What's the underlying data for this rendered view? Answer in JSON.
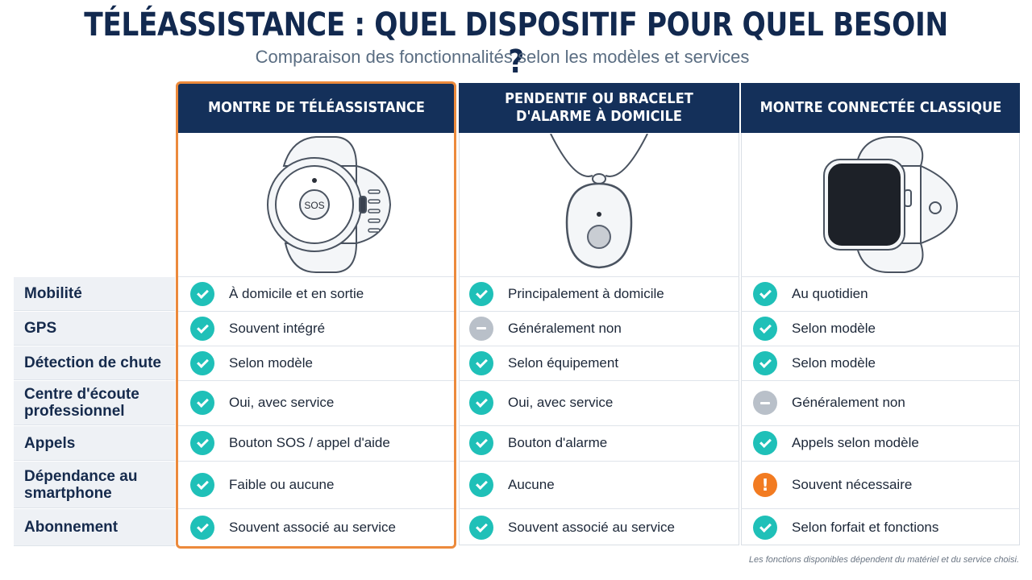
{
  "title": "TÉLÉASSISTANCE : QUEL DISPOSITIF POUR QUEL BESOIN ?",
  "subtitle": "Comparaison des fonctionnalités selon les modèles et services",
  "columns": [
    {
      "header": "MONTRE DE TÉLÉASSISTANCE",
      "image_icon": "sos-watch-icon",
      "highlighted": true
    },
    {
      "header": "PENDENTIF OU BRACELET D'ALARME À DOMICILE",
      "image_icon": "alarm-pendant-icon",
      "highlighted": false
    },
    {
      "header": "MONTRE CONNECTÉE CLASSIQUE",
      "image_icon": "smartwatch-icon",
      "highlighted": false
    }
  ],
  "rows": [
    {
      "label": "Mobilité",
      "cells": [
        {
          "icon": "check",
          "text": "À domicile et en sortie"
        },
        {
          "icon": "check",
          "text": "Principalement à domicile"
        },
        {
          "icon": "check",
          "text": "Au quotidien"
        }
      ]
    },
    {
      "label": "GPS",
      "cells": [
        {
          "icon": "check",
          "text": "Souvent intégré"
        },
        {
          "icon": "neutral",
          "text": "Généralement non"
        },
        {
          "icon": "check",
          "text": "Selon modèle"
        }
      ]
    },
    {
      "label": "Détection de chute",
      "cells": [
        {
          "icon": "check",
          "text": "Selon modèle"
        },
        {
          "icon": "check",
          "text": "Selon équipement"
        },
        {
          "icon": "check",
          "text": "Selon modèle"
        }
      ]
    },
    {
      "label": "Centre d'écoute professionnel",
      "cells": [
        {
          "icon": "check",
          "text": "Oui, avec service"
        },
        {
          "icon": "check",
          "text": "Oui, avec service"
        },
        {
          "icon": "neutral",
          "text": "Généralement non"
        }
      ]
    },
    {
      "label": "Appels",
      "cells": [
        {
          "icon": "check",
          "text": "Bouton SOS / appel d'aide"
        },
        {
          "icon": "check",
          "text": "Bouton d'alarme"
        },
        {
          "icon": "check",
          "text": "Appels selon modèle"
        }
      ]
    },
    {
      "label": "Dépendance au smartphone",
      "cells": [
        {
          "icon": "check",
          "text": "Faible ou aucune"
        },
        {
          "icon": "check",
          "text": "Aucune"
        },
        {
          "icon": "warning",
          "text": "Souvent nécessaire"
        }
      ]
    },
    {
      "label": "Abonnement",
      "cells": [
        {
          "icon": "check",
          "text": "Souvent associé au service"
        },
        {
          "icon": "check",
          "text": "Souvent associé au service"
        },
        {
          "icon": "check",
          "text": "Selon forfait et fonctions"
        }
      ]
    }
  ],
  "watch_button_text": "SOS",
  "footnote": "Les fonctions disponibles dépendent du matériel et du service choisi.",
  "colors": {
    "header_bg": "#14305a",
    "highlight_border": "#ec8a3c",
    "check": "#1fc0b8",
    "neutral": "#b9c0c9",
    "warning": "#f27b21"
  }
}
